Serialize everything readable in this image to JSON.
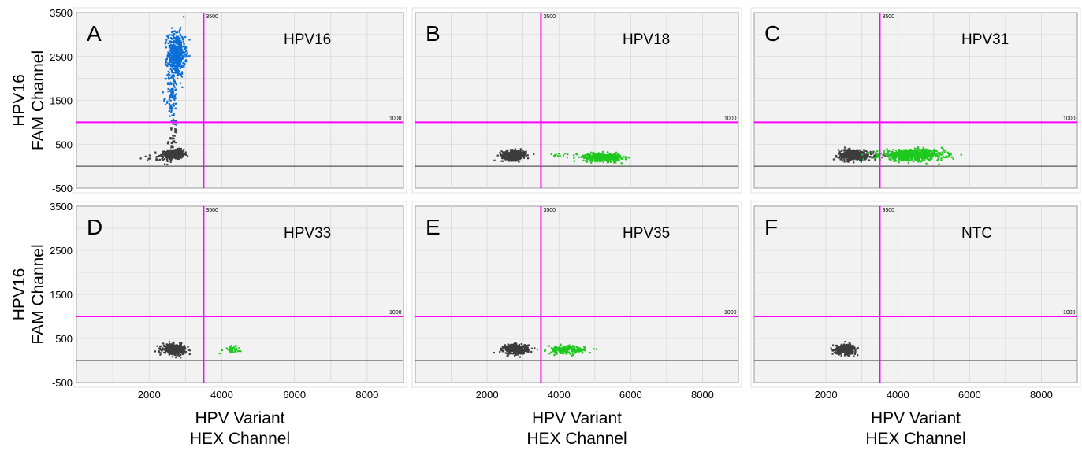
{
  "chart_data": {
    "type": "scatter",
    "xlim": [
      0,
      9000
    ],
    "ylim": [
      -500,
      3500
    ],
    "xticks": [
      2000,
      4000,
      6000,
      8000
    ],
    "yticks": [
      -500,
      500,
      1500,
      2500,
      3500
    ],
    "x_threshold": 3500,
    "y_threshold": 1000,
    "x_threshold_label": "3500",
    "y_threshold_label": "1000",
    "grid": true,
    "ylabel_line1": "HPV16",
    "ylabel_line2": "FAM Channel",
    "xlabel_line1": "HPV Variant",
    "xlabel_line2": "HEX Channel",
    "colors": {
      "negative": "#3c3c3c",
      "fam_positive": "#0a6fd8",
      "hex_positive": "#1ec81e",
      "threshold": "#ff00ff",
      "plot_bg": "#f2f2f2",
      "grid": "#d8d8d8"
    },
    "panels": [
      {
        "letter": "A",
        "name": "HPV16",
        "clusters": [
          {
            "kind": "negative",
            "cx": 2700,
            "cy": 270,
            "sx": 130,
            "sy": 55,
            "n": 380
          },
          {
            "kind": "negative",
            "cx": 2200,
            "cy": 190,
            "sx": 250,
            "sy": 50,
            "n": 25
          },
          {
            "kind": "negative",
            "cx": 2650,
            "cy": 600,
            "sx": 60,
            "sy": 200,
            "n": 40
          },
          {
            "kind": "fam_positive",
            "cx": 2750,
            "cy": 2550,
            "sx": 120,
            "sy": 250,
            "n": 520
          },
          {
            "kind": "fam_positive",
            "cx": 2630,
            "cy": 1600,
            "sx": 80,
            "sy": 350,
            "n": 110
          }
        ]
      },
      {
        "letter": "B",
        "name": "HPV18",
        "clusters": [
          {
            "kind": "negative",
            "cx": 2750,
            "cy": 250,
            "sx": 170,
            "sy": 55,
            "n": 380
          },
          {
            "kind": "hex_positive",
            "cx": 5200,
            "cy": 200,
            "sx": 260,
            "sy": 45,
            "n": 420
          },
          {
            "kind": "hex_positive",
            "cx": 4300,
            "cy": 260,
            "sx": 250,
            "sy": 30,
            "n": 15
          }
        ]
      },
      {
        "letter": "C",
        "name": "HPV31",
        "clusters": [
          {
            "kind": "negative",
            "cx": 2750,
            "cy": 260,
            "sx": 200,
            "sy": 60,
            "n": 400
          },
          {
            "kind": "negative",
            "cx": 3300,
            "cy": 240,
            "sx": 150,
            "sy": 40,
            "n": 40
          },
          {
            "kind": "hex_positive",
            "cx": 4400,
            "cy": 250,
            "sx": 450,
            "sy": 60,
            "n": 700
          }
        ]
      },
      {
        "letter": "D",
        "name": "HPV33",
        "clusters": [
          {
            "kind": "negative",
            "cx": 2700,
            "cy": 260,
            "sx": 160,
            "sy": 55,
            "n": 380
          },
          {
            "kind": "hex_positive",
            "cx": 4250,
            "cy": 260,
            "sx": 130,
            "sy": 40,
            "n": 45
          }
        ]
      },
      {
        "letter": "E",
        "name": "HPV35",
        "clusters": [
          {
            "kind": "negative",
            "cx": 2800,
            "cy": 260,
            "sx": 170,
            "sy": 55,
            "n": 380
          },
          {
            "kind": "hex_positive",
            "cx": 4200,
            "cy": 240,
            "sx": 260,
            "sy": 45,
            "n": 200
          }
        ]
      },
      {
        "letter": "F",
        "name": "NTC",
        "clusters": [
          {
            "kind": "negative",
            "cx": 2550,
            "cy": 260,
            "sx": 140,
            "sy": 55,
            "n": 380
          }
        ]
      }
    ]
  }
}
